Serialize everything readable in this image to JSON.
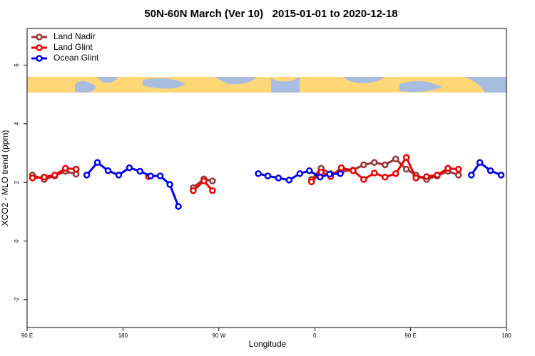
{
  "chart_data": {
    "type": "line",
    "title": "50N-60N March (Ver 10)   2015-01-01 to 2020-12-18",
    "x_label": "Longitude",
    "y_label": "XCO2 - MLO trend (ppm)",
    "xlim": [
      90,
      540
    ],
    "ylim": [
      -2.95,
      7.25
    ],
    "xticks": [
      {
        "value": 90,
        "label": "90 E"
      },
      {
        "value": 180,
        "label": "180"
      },
      {
        "value": 270,
        "label": "90 W"
      },
      {
        "value": 360,
        "label": "0"
      },
      {
        "value": 450,
        "label": "90 E"
      },
      {
        "value": 540,
        "label": "180"
      }
    ],
    "yticks": [
      -2,
      0,
      2,
      4,
      6
    ],
    "legend": "top-left",
    "series": [
      {
        "name": "Land Nadir",
        "color": "#993333",
        "x": [
          95,
          106,
          116,
          126,
          136,
          null,
          246,
          256,
          264,
          null,
          357,
          366,
          375,
          385,
          396,
          406,
          416,
          426,
          436,
          446,
          455,
          465,
          475,
          485,
          495
        ],
        "values": [
          2.25,
          2.1,
          2.22,
          2.38,
          2.28,
          null,
          1.82,
          2.12,
          2.05,
          null,
          2.1,
          2.48,
          2.3,
          2.38,
          2.42,
          2.6,
          2.68,
          2.6,
          2.8,
          2.45,
          2.25,
          2.1,
          2.22,
          2.38,
          2.25
        ]
      },
      {
        "name": "Land Glint",
        "color": "#ee0000",
        "x": [
          95,
          106,
          116,
          126,
          136,
          null,
          204,
          null,
          246,
          256,
          264,
          null,
          357,
          366,
          375,
          385,
          396,
          406,
          416,
          426,
          436,
          446,
          455,
          465,
          475,
          485,
          495
        ],
        "values": [
          2.15,
          2.18,
          2.25,
          2.48,
          2.45,
          null,
          2.2,
          null,
          1.72,
          2.05,
          1.72,
          null,
          2.02,
          2.35,
          2.2,
          2.5,
          2.4,
          2.1,
          2.32,
          2.18,
          2.3,
          2.85,
          2.15,
          2.2,
          2.25,
          2.48,
          2.45
        ]
      },
      {
        "name": "Ocean Glint",
        "color": "#0000ee",
        "x": [
          146,
          156,
          166,
          176,
          186,
          196,
          206,
          215,
          224,
          232,
          null,
          307,
          316,
          326,
          336,
          346,
          355,
          365,
          374,
          384,
          null,
          507,
          515,
          525,
          535
        ],
        "values": [
          2.25,
          2.68,
          2.4,
          2.25,
          2.5,
          2.38,
          2.22,
          2.22,
          1.93,
          1.18,
          null,
          2.3,
          2.22,
          2.15,
          2.08,
          2.3,
          2.4,
          2.18,
          2.28,
          2.3,
          null,
          2.25,
          2.68,
          2.4,
          2.25
        ]
      }
    ]
  }
}
